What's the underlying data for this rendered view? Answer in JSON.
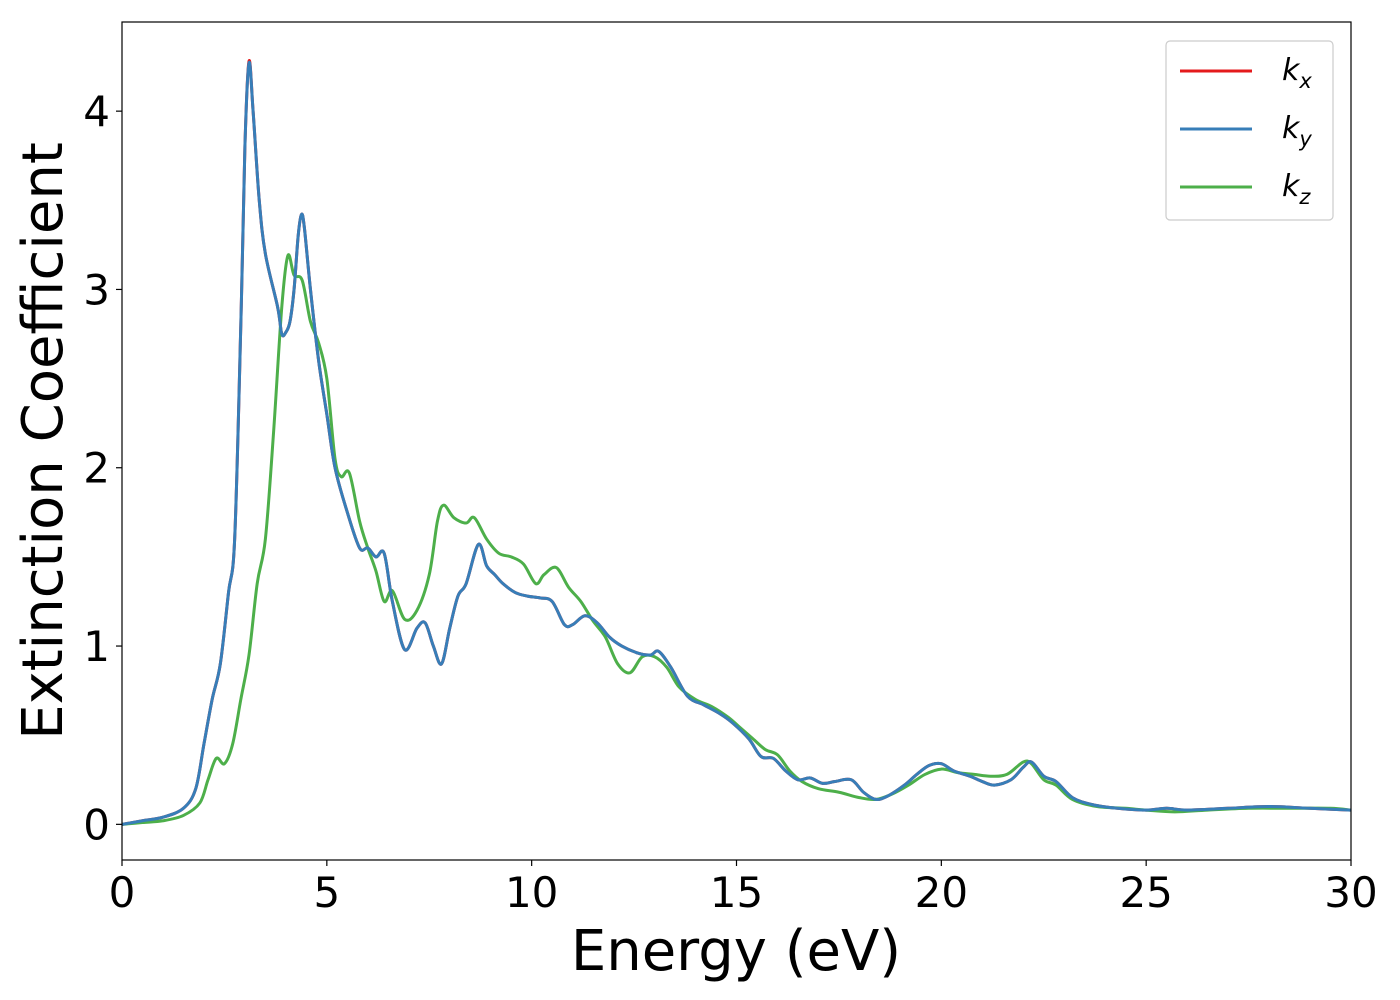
{
  "chart_data": {
    "type": "line",
    "title": "",
    "xlabel": "Energy (eV)",
    "ylabel": "Extinction Coefficient",
    "xlim": [
      0,
      30
    ],
    "ylim": [
      -0.2,
      4.5
    ],
    "xticks": [
      0,
      5,
      10,
      15,
      20,
      25,
      30
    ],
    "yticks": [
      0,
      1,
      2,
      3,
      4
    ],
    "grid": false,
    "legend_position": "top-right",
    "series": [
      {
        "name": "k_x",
        "label_base": "k",
        "label_sub": "x",
        "color": "#e41a1c",
        "points": [
          [
            0,
            0
          ],
          [
            0.5,
            0.02
          ],
          [
            1,
            0.04
          ],
          [
            1.5,
            0.09
          ],
          [
            1.8,
            0.2
          ],
          [
            2.0,
            0.45
          ],
          [
            2.2,
            0.7
          ],
          [
            2.4,
            0.9
          ],
          [
            2.6,
            1.3
          ],
          [
            2.75,
            1.6
          ],
          [
            2.9,
            2.8
          ],
          [
            3.0,
            3.8
          ],
          [
            3.1,
            4.28
          ],
          [
            3.2,
            4.0
          ],
          [
            3.35,
            3.5
          ],
          [
            3.5,
            3.2
          ],
          [
            3.8,
            2.9
          ],
          [
            3.9,
            2.75
          ],
          [
            4.0,
            2.76
          ],
          [
            4.1,
            2.82
          ],
          [
            4.2,
            3.0
          ],
          [
            4.3,
            3.3
          ],
          [
            4.38,
            3.42
          ],
          [
            4.45,
            3.35
          ],
          [
            4.6,
            3.0
          ],
          [
            4.8,
            2.6
          ],
          [
            5.0,
            2.3
          ],
          [
            5.2,
            2.0
          ],
          [
            5.5,
            1.75
          ],
          [
            5.8,
            1.55
          ],
          [
            6.0,
            1.55
          ],
          [
            6.2,
            1.5
          ],
          [
            6.4,
            1.52
          ],
          [
            6.6,
            1.25
          ],
          [
            6.9,
            0.98
          ],
          [
            7.2,
            1.1
          ],
          [
            7.4,
            1.13
          ],
          [
            7.6,
            1.0
          ],
          [
            7.8,
            0.9
          ],
          [
            8.0,
            1.1
          ],
          [
            8.2,
            1.28
          ],
          [
            8.4,
            1.35
          ],
          [
            8.7,
            1.57
          ],
          [
            8.9,
            1.45
          ],
          [
            9.1,
            1.4
          ],
          [
            9.3,
            1.35
          ],
          [
            9.6,
            1.3
          ],
          [
            9.9,
            1.28
          ],
          [
            10.2,
            1.27
          ],
          [
            10.5,
            1.25
          ],
          [
            10.8,
            1.12
          ],
          [
            11.0,
            1.12
          ],
          [
            11.3,
            1.17
          ],
          [
            11.6,
            1.13
          ],
          [
            11.9,
            1.05
          ],
          [
            12.2,
            1.0
          ],
          [
            12.6,
            0.96
          ],
          [
            12.9,
            0.95
          ],
          [
            13.1,
            0.97
          ],
          [
            13.4,
            0.88
          ],
          [
            13.8,
            0.72
          ],
          [
            14.2,
            0.67
          ],
          [
            14.6,
            0.62
          ],
          [
            14.9,
            0.57
          ],
          [
            15.3,
            0.48
          ],
          [
            15.6,
            0.38
          ],
          [
            15.9,
            0.37
          ],
          [
            16.2,
            0.3
          ],
          [
            16.5,
            0.25
          ],
          [
            16.8,
            0.26
          ],
          [
            17.1,
            0.23
          ],
          [
            17.4,
            0.24
          ],
          [
            17.8,
            0.25
          ],
          [
            18.1,
            0.18
          ],
          [
            18.4,
            0.14
          ],
          [
            18.7,
            0.16
          ],
          [
            19.1,
            0.22
          ],
          [
            19.4,
            0.28
          ],
          [
            19.7,
            0.33
          ],
          [
            20.0,
            0.34
          ],
          [
            20.3,
            0.3
          ],
          [
            20.7,
            0.27
          ],
          [
            21.0,
            0.24
          ],
          [
            21.3,
            0.22
          ],
          [
            21.7,
            0.25
          ],
          [
            22.0,
            0.32
          ],
          [
            22.2,
            0.35
          ],
          [
            22.5,
            0.27
          ],
          [
            22.8,
            0.24
          ],
          [
            23.2,
            0.15
          ],
          [
            23.7,
            0.11
          ],
          [
            24.3,
            0.09
          ],
          [
            25.0,
            0.08
          ],
          [
            25.5,
            0.09
          ],
          [
            26.0,
            0.08
          ],
          [
            27.0,
            0.09
          ],
          [
            28.0,
            0.1
          ],
          [
            29.0,
            0.09
          ],
          [
            30.0,
            0.08
          ]
        ]
      },
      {
        "name": "k_y",
        "label_base": "k",
        "label_sub": "y",
        "color": "#377eb8",
        "points": [
          [
            0,
            0
          ],
          [
            0.5,
            0.02
          ],
          [
            1,
            0.04
          ],
          [
            1.5,
            0.09
          ],
          [
            1.8,
            0.2
          ],
          [
            2.0,
            0.45
          ],
          [
            2.2,
            0.7
          ],
          [
            2.4,
            0.9
          ],
          [
            2.6,
            1.3
          ],
          [
            2.75,
            1.6
          ],
          [
            2.9,
            2.8
          ],
          [
            3.0,
            3.8
          ],
          [
            3.1,
            4.27
          ],
          [
            3.2,
            4.0
          ],
          [
            3.35,
            3.5
          ],
          [
            3.5,
            3.2
          ],
          [
            3.8,
            2.9
          ],
          [
            3.9,
            2.75
          ],
          [
            4.0,
            2.76
          ],
          [
            4.1,
            2.82
          ],
          [
            4.2,
            3.0
          ],
          [
            4.3,
            3.3
          ],
          [
            4.38,
            3.42
          ],
          [
            4.45,
            3.35
          ],
          [
            4.6,
            3.0
          ],
          [
            4.8,
            2.6
          ],
          [
            5.0,
            2.3
          ],
          [
            5.2,
            2.0
          ],
          [
            5.5,
            1.75
          ],
          [
            5.8,
            1.55
          ],
          [
            6.0,
            1.55
          ],
          [
            6.2,
            1.5
          ],
          [
            6.4,
            1.52
          ],
          [
            6.6,
            1.25
          ],
          [
            6.9,
            0.98
          ],
          [
            7.2,
            1.1
          ],
          [
            7.4,
            1.13
          ],
          [
            7.6,
            1.0
          ],
          [
            7.8,
            0.9
          ],
          [
            8.0,
            1.1
          ],
          [
            8.2,
            1.28
          ],
          [
            8.4,
            1.35
          ],
          [
            8.7,
            1.57
          ],
          [
            8.9,
            1.45
          ],
          [
            9.1,
            1.4
          ],
          [
            9.3,
            1.35
          ],
          [
            9.6,
            1.3
          ],
          [
            9.9,
            1.28
          ],
          [
            10.2,
            1.27
          ],
          [
            10.5,
            1.25
          ],
          [
            10.8,
            1.12
          ],
          [
            11.0,
            1.12
          ],
          [
            11.3,
            1.17
          ],
          [
            11.6,
            1.13
          ],
          [
            11.9,
            1.05
          ],
          [
            12.2,
            1.0
          ],
          [
            12.6,
            0.96
          ],
          [
            12.9,
            0.95
          ],
          [
            13.1,
            0.97
          ],
          [
            13.4,
            0.88
          ],
          [
            13.8,
            0.72
          ],
          [
            14.2,
            0.67
          ],
          [
            14.6,
            0.62
          ],
          [
            14.9,
            0.57
          ],
          [
            15.3,
            0.48
          ],
          [
            15.6,
            0.38
          ],
          [
            15.9,
            0.37
          ],
          [
            16.2,
            0.3
          ],
          [
            16.5,
            0.25
          ],
          [
            16.8,
            0.26
          ],
          [
            17.1,
            0.23
          ],
          [
            17.4,
            0.24
          ],
          [
            17.8,
            0.25
          ],
          [
            18.1,
            0.18
          ],
          [
            18.4,
            0.14
          ],
          [
            18.7,
            0.16
          ],
          [
            19.1,
            0.22
          ],
          [
            19.4,
            0.28
          ],
          [
            19.7,
            0.33
          ],
          [
            20.0,
            0.34
          ],
          [
            20.3,
            0.3
          ],
          [
            20.7,
            0.27
          ],
          [
            21.0,
            0.24
          ],
          [
            21.3,
            0.22
          ],
          [
            21.7,
            0.25
          ],
          [
            22.0,
            0.32
          ],
          [
            22.2,
            0.35
          ],
          [
            22.5,
            0.27
          ],
          [
            22.8,
            0.24
          ],
          [
            23.2,
            0.15
          ],
          [
            23.7,
            0.11
          ],
          [
            24.3,
            0.09
          ],
          [
            25.0,
            0.08
          ],
          [
            25.5,
            0.09
          ],
          [
            26.0,
            0.08
          ],
          [
            27.0,
            0.09
          ],
          [
            28.0,
            0.1
          ],
          [
            29.0,
            0.09
          ],
          [
            30.0,
            0.08
          ]
        ]
      },
      {
        "name": "k_z",
        "label_base": "k",
        "label_sub": "z",
        "color": "#4daf4a",
        "points": [
          [
            0,
            0
          ],
          [
            0.5,
            0.01
          ],
          [
            1,
            0.02
          ],
          [
            1.5,
            0.05
          ],
          [
            1.9,
            0.12
          ],
          [
            2.1,
            0.25
          ],
          [
            2.3,
            0.37
          ],
          [
            2.5,
            0.34
          ],
          [
            2.7,
            0.45
          ],
          [
            2.9,
            0.7
          ],
          [
            3.1,
            0.95
          ],
          [
            3.3,
            1.35
          ],
          [
            3.5,
            1.6
          ],
          [
            3.7,
            2.2
          ],
          [
            3.9,
            2.9
          ],
          [
            4.05,
            3.19
          ],
          [
            4.2,
            3.08
          ],
          [
            4.4,
            3.05
          ],
          [
            4.6,
            2.82
          ],
          [
            4.8,
            2.7
          ],
          [
            5.0,
            2.5
          ],
          [
            5.2,
            2.05
          ],
          [
            5.35,
            1.95
          ],
          [
            5.55,
            1.97
          ],
          [
            5.8,
            1.7
          ],
          [
            6.0,
            1.55
          ],
          [
            6.2,
            1.42
          ],
          [
            6.4,
            1.25
          ],
          [
            6.6,
            1.31
          ],
          [
            6.9,
            1.15
          ],
          [
            7.2,
            1.2
          ],
          [
            7.5,
            1.4
          ],
          [
            7.7,
            1.7
          ],
          [
            7.85,
            1.79
          ],
          [
            8.1,
            1.72
          ],
          [
            8.4,
            1.69
          ],
          [
            8.6,
            1.72
          ],
          [
            8.9,
            1.6
          ],
          [
            9.2,
            1.52
          ],
          [
            9.5,
            1.5
          ],
          [
            9.8,
            1.46
          ],
          [
            10.1,
            1.35
          ],
          [
            10.3,
            1.4
          ],
          [
            10.6,
            1.44
          ],
          [
            10.9,
            1.33
          ],
          [
            11.2,
            1.25
          ],
          [
            11.5,
            1.14
          ],
          [
            11.8,
            1.05
          ],
          [
            12.1,
            0.9
          ],
          [
            12.4,
            0.85
          ],
          [
            12.7,
            0.94
          ],
          [
            13.0,
            0.94
          ],
          [
            13.3,
            0.88
          ],
          [
            13.6,
            0.77
          ],
          [
            14.0,
            0.7
          ],
          [
            14.4,
            0.66
          ],
          [
            14.8,
            0.6
          ],
          [
            15.1,
            0.54
          ],
          [
            15.4,
            0.48
          ],
          [
            15.7,
            0.42
          ],
          [
            16.0,
            0.39
          ],
          [
            16.3,
            0.3
          ],
          [
            16.6,
            0.24
          ],
          [
            17.0,
            0.2
          ],
          [
            17.5,
            0.18
          ],
          [
            18.0,
            0.15
          ],
          [
            18.4,
            0.14
          ],
          [
            18.8,
            0.17
          ],
          [
            19.2,
            0.22
          ],
          [
            19.6,
            0.28
          ],
          [
            20.0,
            0.31
          ],
          [
            20.4,
            0.29
          ],
          [
            20.8,
            0.28
          ],
          [
            21.2,
            0.27
          ],
          [
            21.6,
            0.28
          ],
          [
            22.0,
            0.35
          ],
          [
            22.2,
            0.34
          ],
          [
            22.5,
            0.25
          ],
          [
            22.8,
            0.22
          ],
          [
            23.2,
            0.14
          ],
          [
            23.8,
            0.1
          ],
          [
            24.5,
            0.09
          ],
          [
            25.0,
            0.08
          ],
          [
            25.7,
            0.07
          ],
          [
            26.5,
            0.08
          ],
          [
            27.5,
            0.09
          ],
          [
            28.5,
            0.09
          ],
          [
            29.5,
            0.09
          ],
          [
            30.0,
            0.08
          ]
        ]
      }
    ]
  }
}
